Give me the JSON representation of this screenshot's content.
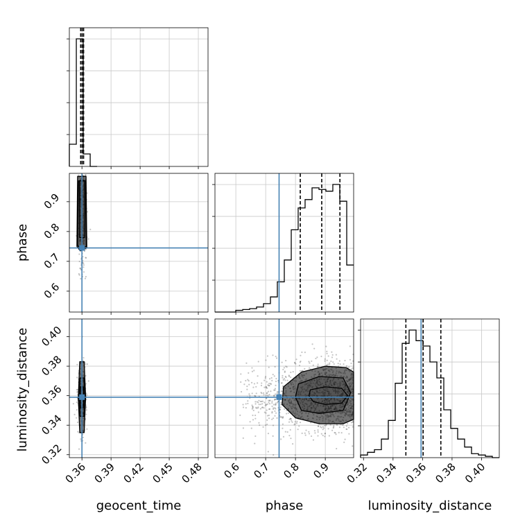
{
  "chart_data": {
    "type": "corner",
    "parameters": [
      "geocent_time",
      "phase",
      "luminosity_distance"
    ],
    "truths": {
      "geocent_time": 0.36,
      "phase": 0.745,
      "luminosity_distance": 0.359
    },
    "colors": {
      "truth": "#4682b4",
      "hist": "#000000",
      "grid": "#c8c8c8",
      "points": "#555555"
    },
    "grid": true,
    "ranges": {
      "geocent_time": [
        0.347,
        0.49
      ],
      "phase": [
        0.53,
        0.995
      ],
      "luminosity_distance": [
        0.318,
        0.412
      ]
    },
    "ticks": {
      "geocent_time": [
        "0.36",
        "0.39",
        "0.42",
        "0.45",
        "0.48"
      ],
      "phase": [
        "0.6",
        "0.7",
        "0.8",
        "0.9"
      ],
      "luminosity_distance_y": [
        "0.32",
        "0.34",
        "0.36",
        "0.38",
        "0.40"
      ],
      "luminosity_distance_x": [
        "0.32",
        "0.34",
        "0.36",
        "0.38",
        "0.40"
      ]
    },
    "histograms": {
      "geocent_time": {
        "edges": [
          0.347,
          0.3542,
          0.3613,
          0.3685,
          0.3756
        ],
        "counts": [
          0.16,
          0.92,
          0.09,
          0.0
        ],
        "quantiles": [
          0.3587,
          0.3602,
          0.3617
        ]
      },
      "phase": {
        "edges": [
          0.53,
          0.5532,
          0.5765,
          0.5998,
          0.623,
          0.6462,
          0.6695,
          0.6928,
          0.716,
          0.7392,
          0.7625,
          0.7858,
          0.809,
          0.8322,
          0.8555,
          0.8788,
          0.902,
          0.9252,
          0.9485,
          0.9718,
          0.995
        ],
        "counts": [
          0,
          0,
          0,
          0.01,
          0.015,
          0.02,
          0.03,
          0.05,
          0.09,
          0.18,
          0.31,
          0.49,
          0.62,
          0.67,
          0.74,
          0.73,
          0.72,
          0.76,
          0.66,
          0.28
        ],
        "quantiles": [
          0.816,
          0.888,
          0.949
        ]
      },
      "luminosity_distance": {
        "edges": [
          0.318,
          0.3227,
          0.3274,
          0.3321,
          0.3368,
          0.3415,
          0.3462,
          0.3509,
          0.3556,
          0.3603,
          0.365,
          0.3697,
          0.3744,
          0.3791,
          0.3838,
          0.3885,
          0.3932,
          0.3979,
          0.4026,
          0.4073,
          0.412
        ],
        "counts": [
          0.01,
          0.02,
          0.03,
          0.07,
          0.14,
          0.28,
          0.43,
          0.48,
          0.44,
          0.42,
          0.36,
          0.3,
          0.18,
          0.11,
          0.07,
          0.04,
          0.015,
          0.01,
          0.005,
          0.0
        ],
        "quantiles": [
          0.3487,
          0.3604,
          0.3724
        ]
      }
    },
    "contours_2d": {
      "phase_vs_geocent_time": [
        {
          "level": 1,
          "points": [
            [
              0.3575,
              0.97
            ],
            [
              0.3628,
              0.97
            ],
            [
              0.3628,
              0.78
            ],
            [
              0.3575,
              0.78
            ]
          ]
        },
        {
          "level": 2,
          "points": [
            [
              0.3565,
              0.97
            ],
            [
              0.3635,
              0.97
            ],
            [
              0.3645,
              0.75
            ],
            [
              0.358,
              0.74
            ],
            [
              0.3555,
              0.755
            ]
          ]
        },
        {
          "level": 3,
          "points": [
            [
              0.3555,
              0.985
            ],
            [
              0.3642,
              0.985
            ],
            [
              0.365,
              0.745
            ],
            [
              0.3583,
              0.735
            ],
            [
              0.3548,
              0.75
            ]
          ]
        }
      ],
      "luminosity_distance_vs_geocent_time": [
        {
          "level": 1,
          "points": [
            [
              0.3586,
              0.366
            ],
            [
              0.3614,
              0.366
            ],
            [
              0.362,
              0.359
            ],
            [
              0.3614,
              0.352
            ],
            [
              0.3586,
              0.352
            ],
            [
              0.358,
              0.359
            ]
          ]
        },
        {
          "level": 2,
          "points": [
            [
              0.358,
              0.372
            ],
            [
              0.362,
              0.372
            ],
            [
              0.363,
              0.359
            ],
            [
              0.362,
              0.346
            ],
            [
              0.358,
              0.346
            ],
            [
              0.357,
              0.359
            ]
          ]
        },
        {
          "level": 3,
          "points": [
            [
              0.3577,
              0.383
            ],
            [
              0.3623,
              0.383
            ],
            [
              0.3638,
              0.359
            ],
            [
              0.3623,
              0.335
            ],
            [
              0.3577,
              0.335
            ],
            [
              0.3562,
              0.359
            ]
          ]
        }
      ],
      "luminosity_distance_vs_phase": [
        {
          "level": 1,
          "points": [
            [
              0.85,
              0.364
            ],
            [
              0.9,
              0.366
            ],
            [
              0.955,
              0.365
            ],
            [
              0.975,
              0.36
            ],
            [
              0.955,
              0.355
            ],
            [
              0.9,
              0.354
            ],
            [
              0.86,
              0.356
            ],
            [
              0.845,
              0.36
            ]
          ]
        },
        {
          "level": 2,
          "points": [
            [
              0.81,
              0.368
            ],
            [
              0.88,
              0.373
            ],
            [
              0.96,
              0.372
            ],
            [
              0.985,
              0.362
            ],
            [
              0.96,
              0.35
            ],
            [
              0.88,
              0.348
            ],
            [
              0.82,
              0.35
            ],
            [
              0.8,
              0.359
            ]
          ]
        },
        {
          "level": 3,
          "points": [
            [
              0.76,
              0.366
            ],
            [
              0.82,
              0.376
            ],
            [
              0.9,
              0.38
            ],
            [
              0.97,
              0.379
            ],
            [
              0.995,
              0.376
            ],
            [
              0.995,
              0.344
            ],
            [
              0.96,
              0.341
            ],
            [
              0.88,
              0.341
            ],
            [
              0.8,
              0.345
            ],
            [
              0.755,
              0.354
            ]
          ]
        }
      ]
    },
    "scatter_note_counts": {
      "phase_vs_geocent_time": 250,
      "luminosity_distance_vs_geocent_time": 250,
      "luminosity_distance_vs_phase": 1400
    }
  }
}
